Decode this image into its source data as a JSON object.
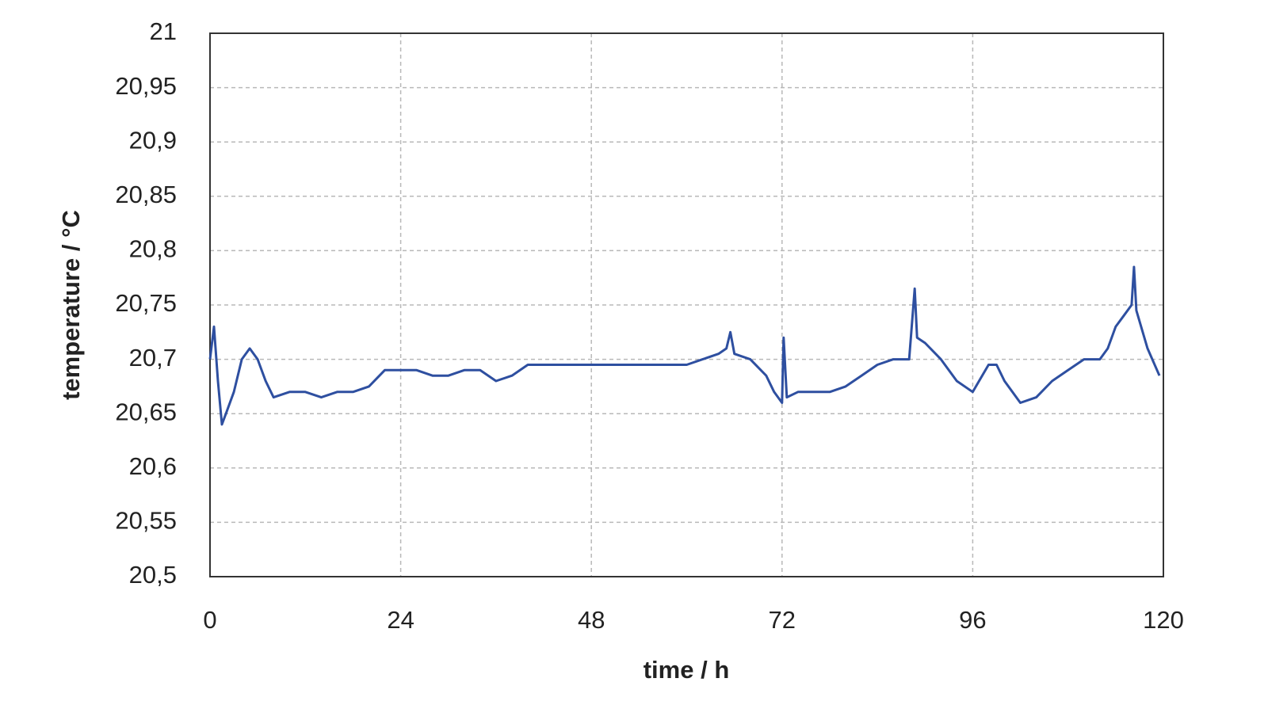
{
  "chart_data": {
    "type": "line",
    "xlabel": "time / h",
    "ylabel": "temperature / °C",
    "xlim": [
      0,
      120
    ],
    "xticks": [
      0,
      24,
      48,
      72,
      96,
      120
    ],
    "ylim": [
      20.5,
      21
    ],
    "yticks": [
      {
        "value": 20.5,
        "label": "20,5"
      },
      {
        "value": 20.55,
        "label": "20,55"
      },
      {
        "value": 20.6,
        "label": "20,6"
      },
      {
        "value": 20.65,
        "label": "20,65"
      },
      {
        "value": 20.7,
        "label": "20,7"
      },
      {
        "value": 20.75,
        "label": "20,75"
      },
      {
        "value": 20.8,
        "label": "20,8"
      },
      {
        "value": 20.85,
        "label": "20,85"
      },
      {
        "value": 20.9,
        "label": "20,9"
      },
      {
        "value": 20.95,
        "label": "20,95"
      },
      21
    ],
    "grid": true,
    "series": [
      {
        "color": "#2e4fa0",
        "x": [
          0,
          0.5,
          1,
          1.5,
          2,
          3,
          4,
          5,
          6,
          7,
          8,
          10,
          12,
          14,
          16,
          18,
          20,
          22,
          24,
          26,
          28,
          30,
          32,
          34,
          36,
          38,
          40,
          44,
          48,
          52,
          56,
          60,
          62,
          64,
          65,
          65.5,
          66,
          68,
          70,
          71,
          72,
          72.2,
          72.6,
          74,
          76,
          78,
          80,
          82,
          84,
          86,
          88,
          88.7,
          89,
          90,
          92,
          94,
          96,
          98,
          99,
          100,
          102,
          104,
          106,
          108,
          110,
          112,
          113,
          114,
          115,
          116,
          116.3,
          116.6,
          118,
          119.5
        ],
        "values": [
          20.7,
          20.73,
          20.68,
          20.64,
          20.65,
          20.67,
          20.7,
          20.71,
          20.7,
          20.68,
          20.665,
          20.67,
          20.67,
          20.665,
          20.67,
          20.67,
          20.675,
          20.69,
          20.69,
          20.69,
          20.685,
          20.685,
          20.69,
          20.69,
          20.68,
          20.685,
          20.695,
          20.695,
          20.695,
          20.695,
          20.695,
          20.695,
          20.7,
          20.705,
          20.71,
          20.725,
          20.705,
          20.7,
          20.685,
          20.67,
          20.66,
          20.72,
          20.665,
          20.67,
          20.67,
          20.67,
          20.675,
          20.685,
          20.695,
          20.7,
          20.7,
          20.765,
          20.72,
          20.715,
          20.7,
          20.68,
          20.67,
          20.695,
          20.695,
          20.68,
          20.66,
          20.665,
          20.68,
          20.69,
          20.7,
          20.7,
          20.71,
          20.73,
          20.74,
          20.75,
          20.785,
          20.745,
          20.71,
          20.685
        ]
      }
    ]
  }
}
